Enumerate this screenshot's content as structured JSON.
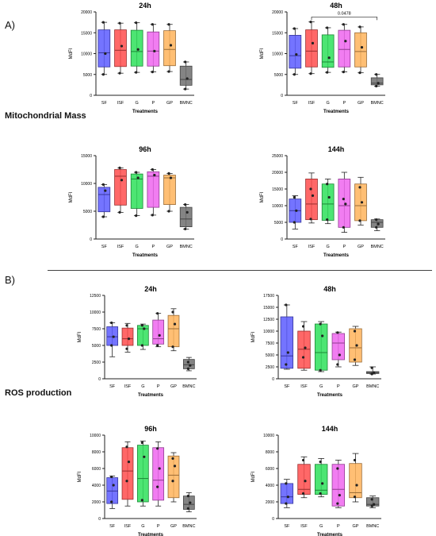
{
  "panels": [
    {
      "letter": "A)",
      "section": "Mitochondrial Mass"
    },
    {
      "letter": "B)",
      "section": "ROS production"
    }
  ],
  "colors": {
    "SF": "#5c5cff",
    "ISF": "#ff4d4d",
    "G": "#2ee05a",
    "P": "#ee66ee",
    "GP": "#ffb45c",
    "BMNC": "#6e6e6e"
  },
  "chart_data": [
    {
      "type": "box",
      "title": "24h",
      "ylabel": "MdFI",
      "xlabel": "Treatments",
      "ylim": [
        0,
        20000
      ],
      "yticks": [
        0,
        5000,
        10000,
        15000,
        20000
      ],
      "categories": [
        "SF",
        "ISF",
        "G",
        "P",
        "GP",
        "BMNC"
      ],
      "boxes": [
        {
          "min": 5000,
          "q1": 6800,
          "median": 10200,
          "q3": 15700,
          "max": 17500,
          "points": [
            17500,
            10000,
            5000
          ]
        },
        {
          "min": 5300,
          "q1": 6900,
          "median": 10800,
          "q3": 15700,
          "max": 17300,
          "points": [
            17300,
            11800,
            5300
          ]
        },
        {
          "min": 5500,
          "q1": 7000,
          "median": 10500,
          "q3": 15600,
          "max": 17400,
          "points": [
            17400,
            11000,
            5500
          ]
        },
        {
          "min": 5600,
          "q1": 7000,
          "median": 10600,
          "q3": 15200,
          "max": 17000,
          "points": [
            17000,
            10600,
            5600
          ]
        },
        {
          "min": 5700,
          "q1": 7100,
          "median": 11000,
          "q3": 15500,
          "max": 17000,
          "points": [
            17000,
            12000,
            5700
          ]
        },
        {
          "min": 1500,
          "q1": 2400,
          "median": 3800,
          "q3": 7000,
          "max": 8000,
          "points": [
            8000,
            4000,
            1500
          ]
        }
      ]
    },
    {
      "type": "box",
      "title": "48h",
      "ylabel": "MdFI",
      "xlabel": "Treatments",
      "ylim": [
        0,
        20000
      ],
      "yticks": [
        0,
        5000,
        10000,
        15000,
        20000
      ],
      "categories": [
        "SF",
        "ISF",
        "G",
        "P",
        "GP",
        "BMNC"
      ],
      "annotation": {
        "text": "0.0478",
        "from": "ISF",
        "to": "BMNC",
        "y": 18800
      },
      "boxes": [
        {
          "min": 5000,
          "q1": 6500,
          "median": 9500,
          "q3": 14400,
          "max": 16000,
          "points": [
            16000,
            9800,
            5000
          ]
        },
        {
          "min": 5200,
          "q1": 6800,
          "median": 10600,
          "q3": 15700,
          "max": 17600,
          "points": [
            17600,
            12500,
            5200
          ]
        },
        {
          "min": 5500,
          "q1": 6700,
          "median": 8000,
          "q3": 14500,
          "max": 16200,
          "points": [
            16200,
            9000,
            5500
          ]
        },
        {
          "min": 5600,
          "q1": 6800,
          "median": 11000,
          "q3": 15600,
          "max": 17000,
          "points": [
            17000,
            13000,
            5600
          ]
        },
        {
          "min": 5400,
          "q1": 6800,
          "median": 10500,
          "q3": 15000,
          "max": 16400,
          "points": [
            16400,
            11500,
            5400
          ]
        },
        {
          "min": 2200,
          "q1": 2500,
          "median": 2900,
          "q3": 4200,
          "max": 5000,
          "points": [
            5000,
            2900,
            2200
          ]
        }
      ]
    },
    {
      "type": "box",
      "title": "96h",
      "ylabel": "MdFI",
      "xlabel": "Treatments",
      "ylim": [
        0,
        15000
      ],
      "yticks": [
        0,
        5000,
        10000,
        15000
      ],
      "categories": [
        "SF",
        "ISF",
        "G",
        "P",
        "GP",
        "BMNC"
      ],
      "boxes": [
        {
          "min": 4000,
          "q1": 4900,
          "median": 8000,
          "q3": 9300,
          "max": 9800,
          "points": [
            9800,
            8700,
            4000
          ]
        },
        {
          "min": 4800,
          "q1": 6100,
          "median": 11300,
          "q3": 12500,
          "max": 12800,
          "points": [
            12800,
            10600,
            4800
          ]
        },
        {
          "min": 4200,
          "q1": 5500,
          "median": 10800,
          "q3": 11700,
          "max": 12000,
          "points": [
            12000,
            11000,
            4200
          ]
        },
        {
          "min": 4300,
          "q1": 5700,
          "median": 11300,
          "q3": 12100,
          "max": 12500,
          "points": [
            12500,
            11500,
            4300
          ]
        },
        {
          "min": 5000,
          "q1": 6200,
          "median": 11000,
          "q3": 11500,
          "max": 11800,
          "points": [
            11800,
            11000,
            5000
          ]
        },
        {
          "min": 1800,
          "q1": 2200,
          "median": 3600,
          "q3": 5700,
          "max": 6200,
          "points": [
            6200,
            4800,
            1800
          ]
        }
      ]
    },
    {
      "type": "box",
      "title": "144h",
      "ylabel": "MdFI",
      "xlabel": "Treatments",
      "ylim": [
        0,
        25000
      ],
      "yticks": [
        0,
        5000,
        10000,
        15000,
        20000,
        25000
      ],
      "categories": [
        "SF",
        "ISF",
        "G",
        "P",
        "GP",
        "BMNC"
      ],
      "boxes": [
        {
          "min": 3000,
          "q1": 5000,
          "median": 8500,
          "q3": 12000,
          "max": 13000,
          "points": [
            12500,
            8500,
            5000
          ]
        },
        {
          "min": 4800,
          "q1": 5800,
          "median": 10500,
          "q3": 18000,
          "max": 19800,
          "points": [
            15000,
            13000,
            6000
          ]
        },
        {
          "min": 4600,
          "q1": 5600,
          "median": 10500,
          "q3": 16500,
          "max": 18000,
          "points": [
            16500,
            12500,
            5800
          ]
        },
        {
          "min": 2000,
          "q1": 3500,
          "median": 10000,
          "q3": 18000,
          "max": 20000,
          "points": [
            12000,
            10500,
            3500
          ]
        },
        {
          "min": 4200,
          "q1": 5500,
          "median": 10000,
          "q3": 16500,
          "max": 18500,
          "points": [
            15500,
            11000,
            5500
          ]
        },
        {
          "min": 2500,
          "q1": 3500,
          "median": 5000,
          "q3": 5800,
          "max": 6000,
          "points": [
            5800,
            4500,
            3500
          ]
        }
      ]
    },
    {
      "type": "box",
      "title": "24h",
      "ylabel": "MdFI",
      "xlabel": "Treatments",
      "ylim": [
        0,
        12500
      ],
      "yticks": [
        0,
        2500,
        5000,
        7500,
        10000,
        12500
      ],
      "categories": [
        "SF",
        "ISF",
        "G",
        "P",
        "GP",
        "BMNC"
      ],
      "boxes": [
        {
          "min": 3300,
          "q1": 5000,
          "median": 6300,
          "q3": 7800,
          "max": 8400,
          "points": [
            8400,
            6300,
            5000
          ]
        },
        {
          "min": 4000,
          "q1": 5000,
          "median": 6000,
          "q3": 7600,
          "max": 8300,
          "points": [
            8000,
            6000,
            4500
          ]
        },
        {
          "min": 4400,
          "q1": 5000,
          "median": 7500,
          "q3": 8000,
          "max": 8200,
          "points": [
            8000,
            7500,
            5000
          ]
        },
        {
          "min": 4800,
          "q1": 5200,
          "median": 6000,
          "q3": 8800,
          "max": 9800,
          "points": [
            9800,
            6500,
            5000
          ]
        },
        {
          "min": 4200,
          "q1": 4800,
          "median": 7500,
          "q3": 9500,
          "max": 10500,
          "points": [
            10000,
            8200,
            4800
          ]
        },
        {
          "min": 1200,
          "q1": 1500,
          "median": 2100,
          "q3": 2900,
          "max": 3200,
          "points": [
            2500,
            2000,
            1500
          ]
        }
      ]
    },
    {
      "type": "box",
      "title": "48h",
      "ylabel": "MdFI",
      "xlabel": "Treatments",
      "ylim": [
        0,
        17500
      ],
      "yticks": [
        0,
        2500,
        5000,
        7500,
        10000,
        12500,
        15000,
        17500
      ],
      "categories": [
        "SF",
        "ISF",
        "G",
        "P",
        "GP",
        "BMNC"
      ],
      "boxes": [
        {
          "min": 2000,
          "q1": 2200,
          "median": 4800,
          "q3": 13000,
          "max": 15500,
          "points": [
            15500,
            5500,
            3000
          ]
        },
        {
          "min": 1800,
          "q1": 2200,
          "median": 6200,
          "q3": 10000,
          "max": 12000,
          "points": [
            11000,
            6500,
            4500
          ]
        },
        {
          "min": 1500,
          "q1": 1800,
          "median": 5500,
          "q3": 11500,
          "max": 12000,
          "points": [
            11500,
            9000,
            1800
          ]
        },
        {
          "min": 2500,
          "q1": 4000,
          "median": 7500,
          "q3": 9500,
          "max": 9800,
          "points": [
            9700,
            5000,
            3000
          ]
        },
        {
          "min": 2800,
          "q1": 3500,
          "median": 6500,
          "q3": 10500,
          "max": 11000,
          "points": [
            10000,
            7000,
            4000
          ]
        },
        {
          "min": 1000,
          "q1": 1100,
          "median": 1300,
          "q3": 1500,
          "max": 2500,
          "points": [
            2300,
            1300,
            1000
          ]
        }
      ]
    },
    {
      "type": "box",
      "title": "96h",
      "ylabel": "MdFI",
      "xlabel": "Treatments",
      "ylim": [
        0,
        10000
      ],
      "yticks": [
        0,
        2000,
        4000,
        6000,
        8000,
        10000
      ],
      "categories": [
        "SF",
        "ISF",
        "G",
        "P",
        "GP",
        "BMNC"
      ],
      "boxes": [
        {
          "min": 1200,
          "q1": 1800,
          "median": 3300,
          "q3": 4900,
          "max": 5100,
          "points": [
            5000,
            4000,
            2000
          ]
        },
        {
          "min": 1500,
          "q1": 2300,
          "median": 5700,
          "q3": 8500,
          "max": 9200,
          "points": [
            8600,
            6800,
            4500
          ]
        },
        {
          "min": 1500,
          "q1": 2000,
          "median": 4800,
          "q3": 8800,
          "max": 9300,
          "points": [
            9100,
            7400,
            2200
          ]
        },
        {
          "min": 1500,
          "q1": 2200,
          "median": 4600,
          "q3": 8500,
          "max": 9200,
          "points": [
            8400,
            6000,
            3800
          ]
        },
        {
          "min": 2000,
          "q1": 2500,
          "median": 5200,
          "q3": 7500,
          "max": 7900,
          "points": [
            7200,
            6300,
            4500
          ]
        },
        {
          "min": 800,
          "q1": 1100,
          "median": 1700,
          "q3": 2700,
          "max": 3100,
          "points": [
            2700,
            1900,
            1200
          ]
        }
      ]
    },
    {
      "type": "box",
      "title": "144h",
      "ylabel": "MdFI",
      "xlabel": "Treatments",
      "ylim": [
        0,
        10000
      ],
      "yticks": [
        0,
        2000,
        4000,
        6000,
        8000,
        10000
      ],
      "categories": [
        "SF",
        "ISF",
        "G",
        "P",
        "GP",
        "BMNC"
      ],
      "boxes": [
        {
          "min": 1300,
          "q1": 1800,
          "median": 2600,
          "q3": 4200,
          "max": 4700,
          "points": [
            4200,
            2600,
            1800
          ]
        },
        {
          "min": 2500,
          "q1": 2900,
          "median": 3500,
          "q3": 6500,
          "max": 7400,
          "points": [
            7000,
            4500,
            3000
          ]
        },
        {
          "min": 2600,
          "q1": 2900,
          "median": 3400,
          "q3": 6500,
          "max": 7200,
          "points": [
            6800,
            4200,
            3000
          ]
        },
        {
          "min": 1300,
          "q1": 1500,
          "median": 3500,
          "q3": 6500,
          "max": 7000,
          "points": [
            6000,
            2800,
            1800
          ]
        },
        {
          "min": 2000,
          "q1": 2500,
          "median": 3100,
          "q3": 6600,
          "max": 7800,
          "points": [
            7000,
            4000,
            2600
          ]
        },
        {
          "min": 1300,
          "q1": 1500,
          "median": 1700,
          "q3": 2500,
          "max": 2700,
          "points": [
            2300,
            1700,
            1500
          ]
        }
      ]
    }
  ]
}
